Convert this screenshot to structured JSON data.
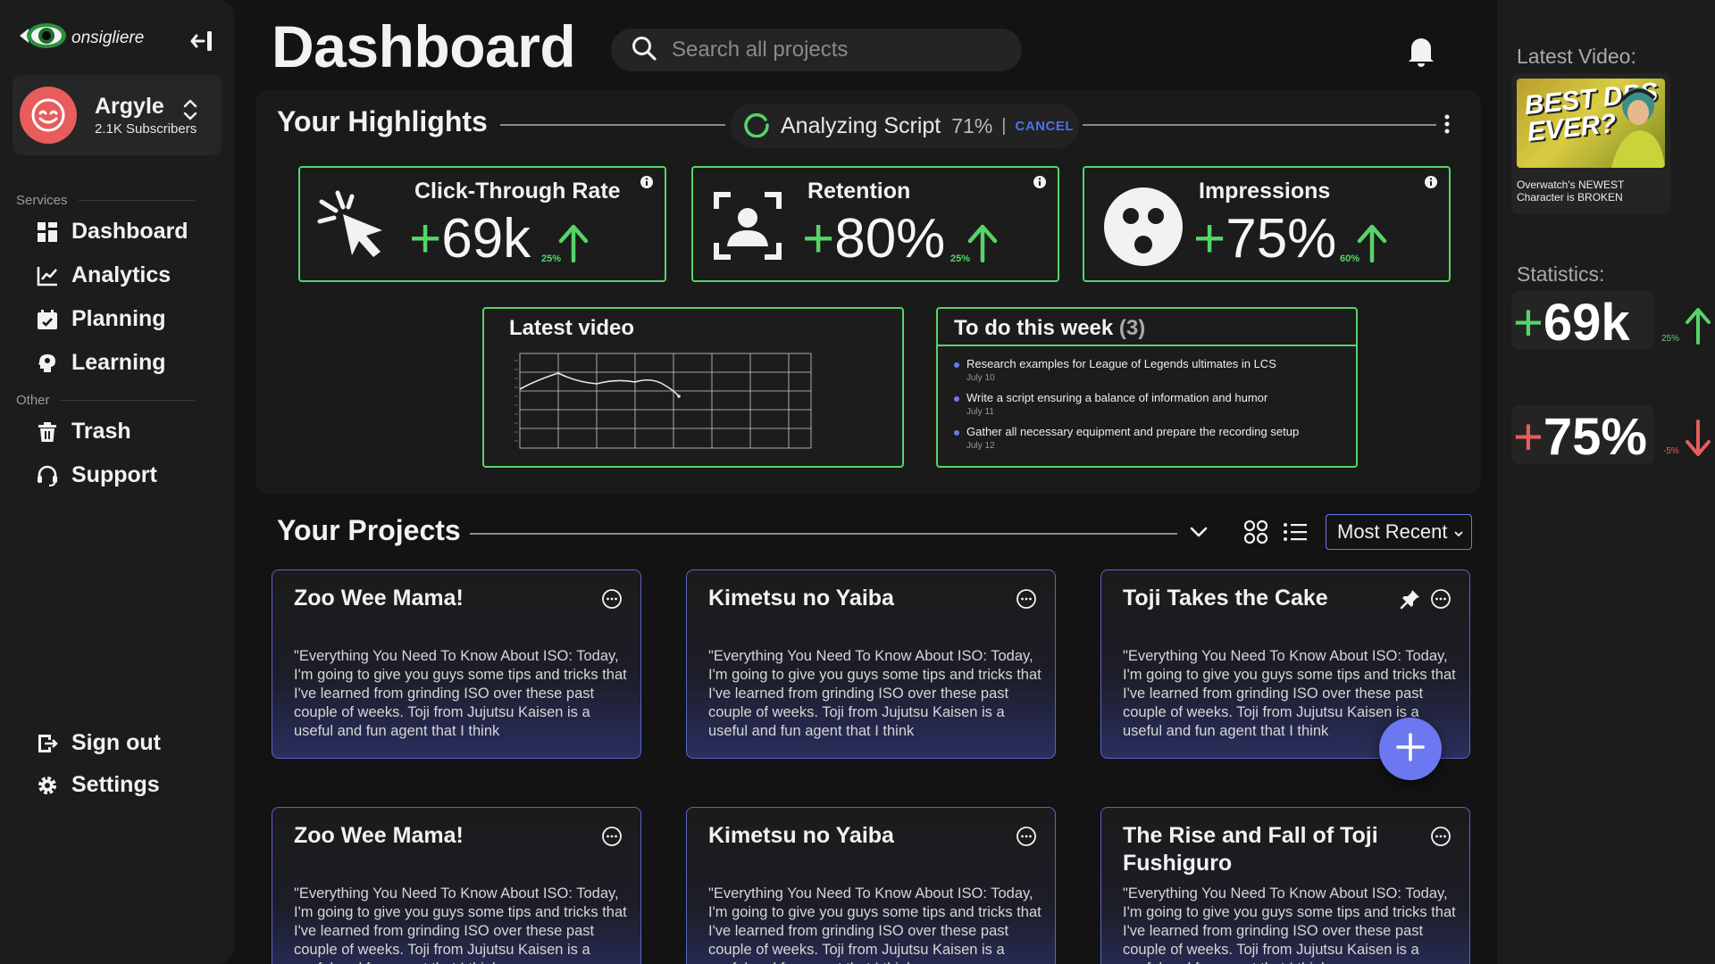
{
  "app": {
    "logo_text": "onsigliere"
  },
  "profile": {
    "name": "Argyle",
    "subscribers": "2.1K Subscribers"
  },
  "sidebar": {
    "services_label": "Services",
    "other_label": "Other",
    "services": [
      {
        "label": "Dashboard",
        "icon": "dashboard-icon"
      },
      {
        "label": "Analytics",
        "icon": "analytics-icon"
      },
      {
        "label": "Planning",
        "icon": "calendar-icon"
      },
      {
        "label": "Learning",
        "icon": "brain-icon"
      }
    ],
    "other": [
      {
        "label": "Trash",
        "icon": "trash-icon"
      },
      {
        "label": "Support",
        "icon": "headset-icon"
      }
    ],
    "sign_out": "Sign out",
    "settings": "Settings"
  },
  "header": {
    "title": "Dashboard",
    "search_placeholder": "Search all projects"
  },
  "highlights": {
    "title": "Your Highlights",
    "analyzing": {
      "label": "Analyzing Script",
      "progress": "71%",
      "separator": "|",
      "cancel": "CANCEL"
    },
    "stats": [
      {
        "title": "Click-Through Rate",
        "sign": "+",
        "value": "69k",
        "change": "25%",
        "icon": "cursor-click-icon"
      },
      {
        "title": "Retention",
        "sign": "+",
        "value": "80%",
        "change": "25%",
        "icon": "user-focus-icon"
      },
      {
        "title": "Impressions",
        "sign": "+",
        "value": "75%",
        "change": "60%",
        "icon": "smiley-icon"
      }
    ],
    "latest_video_title": "Latest video",
    "todo": {
      "title": "To do this week",
      "count": "(3)",
      "items": [
        {
          "text": "Research examples for League of Legends ultimates in LCS",
          "date": "July 10"
        },
        {
          "text": "Write a script ensuring a balance of information and humor",
          "date": "July 11"
        },
        {
          "text": "Gather all necessary equipment and prepare the recording setup",
          "date": "July 12"
        }
      ]
    }
  },
  "projects": {
    "title": "Your Projects",
    "sort": "Most Recent",
    "cards": [
      {
        "name": "Zoo Wee Mama!",
        "desc": "\"Everything You Need To Know About ISO: Today, I'm going to give you guys some tips and tricks that I've learned from grinding ISO over these past couple of weeks. Toji from Jujutsu Kaisen is a useful and fun agent that I think",
        "pinned": false
      },
      {
        "name": "Kimetsu no Yaiba",
        "desc": "\"Everything You Need To Know About ISO: Today, I'm going to give you guys some tips and tricks that I've learned from grinding ISO over these past couple of weeks. Toji from Jujutsu Kaisen is a useful and fun agent that I think",
        "pinned": false
      },
      {
        "name": "Toji Takes the Cake",
        "desc": "\"Everything You Need To Know About ISO: Today, I'm going to give you guys some tips and tricks that I've learned from grinding ISO over these past couple of weeks. Toji from Jujutsu Kaisen is a useful and fun agent that I think",
        "pinned": true
      },
      {
        "name": "Zoo Wee Mama!",
        "desc": "\"Everything You Need To Know About ISO: Today, I'm going to give you guys some tips and tricks that I've learned from grinding ISO over these past couple of weeks. Toji from Jujutsu Kaisen is a useful and fun agent that I think",
        "pinned": false
      },
      {
        "name": "Kimetsu no Yaiba",
        "desc": "\"Everything You Need To Know About ISO: Today, I'm going to give you guys some tips and tricks that I've learned from grinding ISO over these past couple of weeks. Toji from Jujutsu Kaisen is a useful and fun agent that I think",
        "pinned": false
      },
      {
        "name": "The Rise and Fall of Toji Fushiguro",
        "desc": "\"Everything You Need To Know About ISO: Today, I'm going to give you guys some tips and tricks that I've learned from grinding ISO over these past couple of weeks. Toji from Jujutsu Kaisen is a useful and fun agent that I think",
        "pinned": false
      }
    ]
  },
  "right_panel": {
    "latest_video_label": "Latest Video:",
    "video_thumb_text": "BEST DPS EVER?",
    "video_title": "Overwatch's NEWEST Character is BROKEN",
    "statistics_label": "Statistics:",
    "stats": [
      {
        "sign": "+",
        "value": "69k",
        "change": "25%",
        "direction": "up"
      },
      {
        "sign": "+",
        "value": "75%",
        "change": "-5%",
        "direction": "down"
      }
    ]
  },
  "colors": {
    "accent_green": "#56d469",
    "accent_purple": "#6c78f0",
    "danger_red": "#e85c5c"
  }
}
